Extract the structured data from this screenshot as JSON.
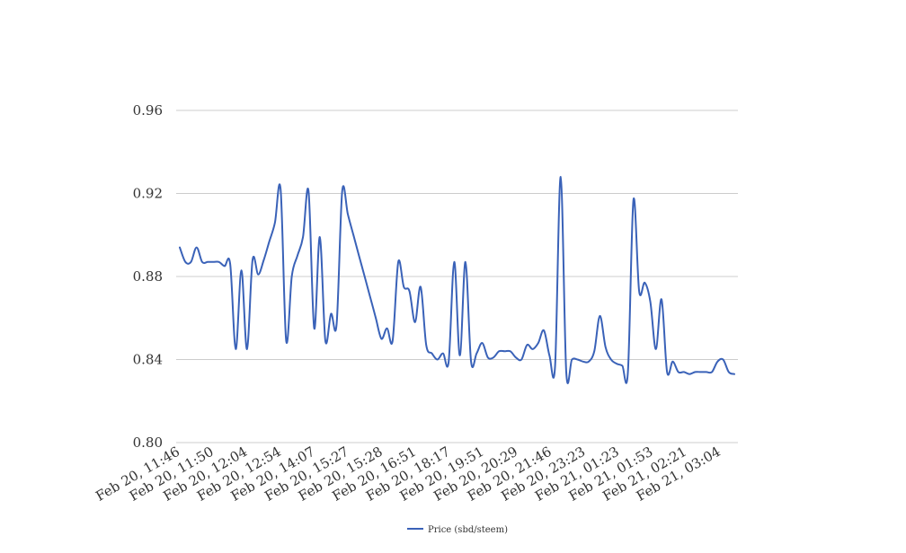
{
  "chart_data": {
    "type": "line",
    "title": "",
    "xlabel": "",
    "ylabel": "",
    "ylim": [
      0.8,
      0.96
    ],
    "y_ticks": [
      "0.80",
      "0.84",
      "0.88",
      "0.92",
      "0.96"
    ],
    "x_tick_labels": [
      "Feb 20, 11:46",
      "Feb 20, 11:50",
      "Feb 20, 12:04",
      "Feb 20, 12:54",
      "Feb 20, 14:07",
      "Feb 20, 15:27",
      "Feb 20, 15:28",
      "Feb 20, 16:51",
      "Feb 20, 18:17",
      "Feb 20, 19:51",
      "Feb 20, 20:29",
      "Feb 20, 21:46",
      "Feb 20, 23:23",
      "Feb 21, 01:23",
      "Feb 21, 01:53",
      "Feb 21, 02:21",
      "Feb 21, 03:04"
    ],
    "grid": true,
    "legend_position": "bottom",
    "series": [
      {
        "name": "Price (sbd/steem)",
        "color": "#3a62b8",
        "values": [
          0.894,
          0.887,
          0.887,
          0.894,
          0.887,
          0.887,
          0.887,
          0.887,
          0.885,
          0.886,
          0.845,
          0.883,
          0.845,
          0.888,
          0.881,
          0.888,
          0.897,
          0.906,
          0.922,
          0.849,
          0.88,
          0.89,
          0.899,
          0.921,
          0.855,
          0.899,
          0.849,
          0.862,
          0.857,
          0.921,
          0.91,
          0.9,
          0.89,
          0.88,
          0.87,
          0.86,
          0.85,
          0.855,
          0.849,
          0.887,
          0.875,
          0.873,
          0.858,
          0.875,
          0.847,
          0.843,
          0.84,
          0.843,
          0.839,
          0.887,
          0.842,
          0.887,
          0.839,
          0.843,
          0.848,
          0.841,
          0.841,
          0.844,
          0.844,
          0.844,
          0.841,
          0.84,
          0.847,
          0.845,
          0.848,
          0.854,
          0.842,
          0.837,
          0.928,
          0.834,
          0.84,
          0.84,
          0.839,
          0.839,
          0.844,
          0.861,
          0.846,
          0.84,
          0.838,
          0.837,
          0.834,
          0.917,
          0.873,
          0.877,
          0.868,
          0.845,
          0.869,
          0.834,
          0.839,
          0.834,
          0.834,
          0.833,
          0.834,
          0.834,
          0.834,
          0.834,
          0.839,
          0.84,
          0.834,
          0.833
        ]
      }
    ]
  }
}
